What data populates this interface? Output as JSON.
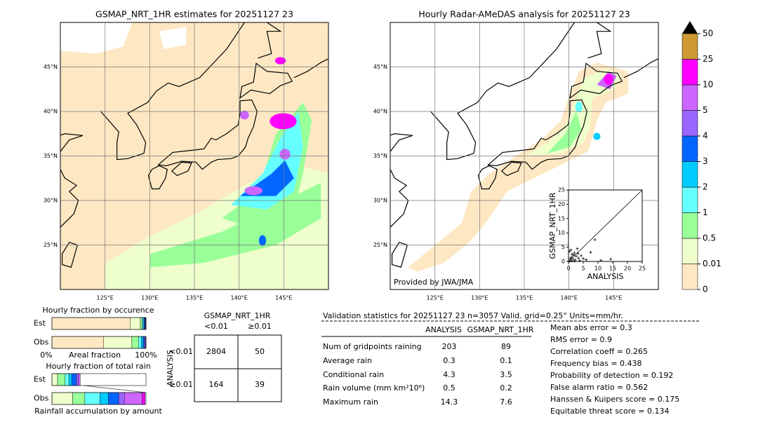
{
  "maps": [
    {
      "title": "GSMAP_NRT_1HR estimates for 20251127 23",
      "xlim": [
        120,
        150
      ],
      "ylim": [
        20,
        50
      ],
      "xticks": [
        {
          "value": 125,
          "label": "125°E"
        },
        {
          "value": 130,
          "label": "130°E"
        },
        {
          "value": 135,
          "label": "135°E"
        },
        {
          "value": 140,
          "label": "140°E"
        },
        {
          "value": 145,
          "label": "145°E"
        }
      ],
      "yticks": [
        {
          "value": 25,
          "label": "25°N"
        },
        {
          "value": 30,
          "label": "30°N"
        },
        {
          "value": 35,
          "label": "35°N"
        },
        {
          "value": 40,
          "label": "40°N"
        },
        {
          "value": 45,
          "label": "45°N"
        }
      ]
    },
    {
      "title": "Hourly Radar-AMeDAS analysis for 20251127 23",
      "xlim": [
        120,
        150
      ],
      "ylim": [
        20,
        50
      ],
      "xticks": [
        {
          "value": 125,
          "label": "125°E"
        },
        {
          "value": 130,
          "label": "130°E"
        },
        {
          "value": 135,
          "label": "135°E"
        },
        {
          "value": 140,
          "label": "140°E"
        },
        {
          "value": 145,
          "label": "145°E"
        }
      ],
      "yticks": [
        {
          "value": 25,
          "label": "25°N"
        },
        {
          "value": 30,
          "label": "30°N"
        },
        {
          "value": 35,
          "label": "35°N"
        },
        {
          "value": 40,
          "label": "40°N"
        },
        {
          "value": 45,
          "label": "45°N"
        }
      ],
      "note": "Provided by JWA/JMA"
    }
  ],
  "colorbar": {
    "levels": [
      0,
      0.01,
      0.5,
      1,
      2,
      3,
      4,
      5,
      10,
      25,
      50
    ],
    "colors": [
      "#fde8c3",
      "#eeffcc",
      "#99ff99",
      "#66ffff",
      "#00ccff",
      "#0066ff",
      "#9966ff",
      "#cc66ff",
      "#ff00ff",
      "#cc9933"
    ],
    "extend": "max"
  },
  "scatter": {
    "xlabel": "ANALYSIS",
    "ylabel": "GSMAP_NRT_1HR",
    "xlim": [
      0,
      25
    ],
    "ylim": [
      0,
      25
    ],
    "xticks": [
      0,
      5,
      10,
      15,
      20,
      25
    ],
    "yticks": [
      0,
      5,
      10,
      15,
      20,
      25
    ],
    "x": [
      0.3,
      0.5,
      0.8,
      1.0,
      1.2,
      1.5,
      1.8,
      2.0,
      2.3,
      2.6,
      3.0,
      3.4,
      3.8,
      4.3,
      5.0,
      6.0,
      7.5,
      9.0,
      11.0,
      14.3,
      1.0,
      2.0,
      0.6,
      3.2
    ],
    "y": [
      3.5,
      0.2,
      4.0,
      1.5,
      2.5,
      0.8,
      2.2,
      3.0,
      0.5,
      1.8,
      4.5,
      1.2,
      0.3,
      2.0,
      1.0,
      0.6,
      3.2,
      7.6,
      0.4,
      0.8,
      0.2,
      0.1,
      1.0,
      2.8
    ]
  },
  "occurrence": {
    "title": "Hourly fraction by occurence",
    "rows": [
      "Est",
      "Obs"
    ],
    "xlabel_left": "0%",
    "xlabel": "Areal fraction",
    "xlabel_right": "100%",
    "values": [
      [
        83,
        11,
        2,
        1,
        1,
        1,
        0.5,
        0.5,
        0,
        0
      ],
      [
        55,
        30,
        7,
        3,
        2,
        1.5,
        1,
        0.5,
        0,
        0
      ]
    ]
  },
  "total": {
    "title": "Hourly fraction of total rain",
    "rows": [
      "Est",
      "Obs"
    ],
    "xlabel": "Rainfall accumulation by amount",
    "values": [
      [
        0,
        6,
        8,
        4,
        3,
        5,
        2,
        2,
        0,
        0
      ],
      [
        0,
        22,
        13,
        16,
        9,
        11,
        6,
        19,
        3,
        0
      ]
    ]
  },
  "contingency": {
    "title": "GSMAP_NRT_1HR",
    "columns": [
      "<0.01",
      "≥0.01"
    ],
    "row_title": "ANALYSIS",
    "rows": [
      "<0.01",
      "≥0.01"
    ],
    "cells": [
      [
        "2804",
        "50"
      ],
      [
        "164",
        "39"
      ]
    ]
  },
  "stats": {
    "header": "Validation statistics for 20251127 23  n=3057 Valid. grid=0.25° Units=mm/hr.",
    "columns": [
      "ANALYSIS",
      "GSMAP_NRT_1HR"
    ],
    "rows": [
      [
        "Num of gridpoints raining",
        "203",
        "89"
      ],
      [
        "Average rain",
        "0.3",
        "0.1"
      ],
      [
        "Conditional rain",
        "4.3",
        "3.5"
      ],
      [
        "Rain volume (mm km²10⁶)",
        "0.5",
        "0.2"
      ],
      [
        "Maximum rain",
        "14.3",
        "7.6"
      ]
    ],
    "scores": [
      "Mean abs error =    0.3",
      "RMS error =    0.9",
      "Correlation coeff =  0.265",
      "Frequency bias =  0.438",
      "Probability of detection =  0.192",
      "False alarm ratio =  0.562",
      "Hanssen & Kuipers score =  0.175",
      "Equitable threat score =  0.134"
    ]
  }
}
